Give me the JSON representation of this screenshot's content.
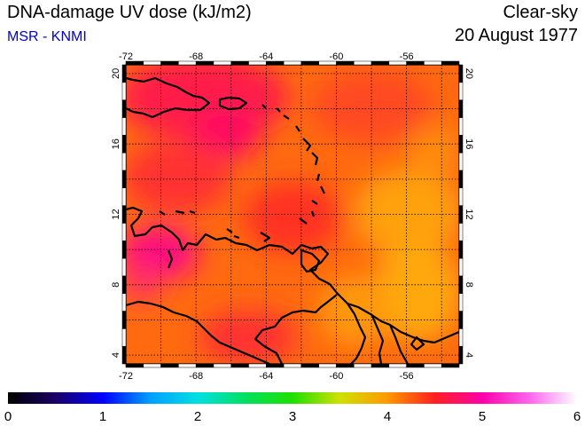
{
  "header": {
    "title": "DNA-damage UV dose (kJ/m2)",
    "subtitle": "MSR - KNMI",
    "condition": "Clear-sky",
    "date": "20 August 1977"
  },
  "map": {
    "lon_range": [
      -72,
      -53
    ],
    "lat_range": [
      3.5,
      20.5
    ],
    "lon_ticks": [
      -72,
      -68,
      -64,
      -60,
      -56
    ],
    "lat_ticks": [
      4,
      8,
      12,
      16,
      20
    ],
    "lon_tick_labels": [
      "-72",
      "-68",
      "-64",
      "-60",
      "-56"
    ],
    "lat_tick_labels": [
      "4",
      "8",
      "12",
      "16",
      "20"
    ],
    "grid": "dotted, every 2 degrees",
    "field_range_kJ_m2": [
      3.5,
      5.2
    ]
  },
  "colorbar": {
    "range": [
      0,
      6
    ],
    "tick_labels": [
      "0",
      "1",
      "2",
      "3",
      "4",
      "5",
      "6"
    ],
    "stops": [
      {
        "v": 0.0,
        "color": "#000000"
      },
      {
        "v": 0.5,
        "color": "#1a0066"
      },
      {
        "v": 1.0,
        "color": "#0000ff"
      },
      {
        "v": 1.5,
        "color": "#00a0ff"
      },
      {
        "v": 2.0,
        "color": "#00e0e0"
      },
      {
        "v": 2.5,
        "color": "#00e060"
      },
      {
        "v": 3.0,
        "color": "#20e000"
      },
      {
        "v": 3.5,
        "color": "#d0e000"
      },
      {
        "v": 4.0,
        "color": "#ff9900"
      },
      {
        "v": 4.5,
        "color": "#ff2020"
      },
      {
        "v": 5.0,
        "color": "#ff00aa"
      },
      {
        "v": 5.5,
        "color": "#ff66ee"
      },
      {
        "v": 6.0,
        "color": "#ffffff"
      }
    ]
  }
}
